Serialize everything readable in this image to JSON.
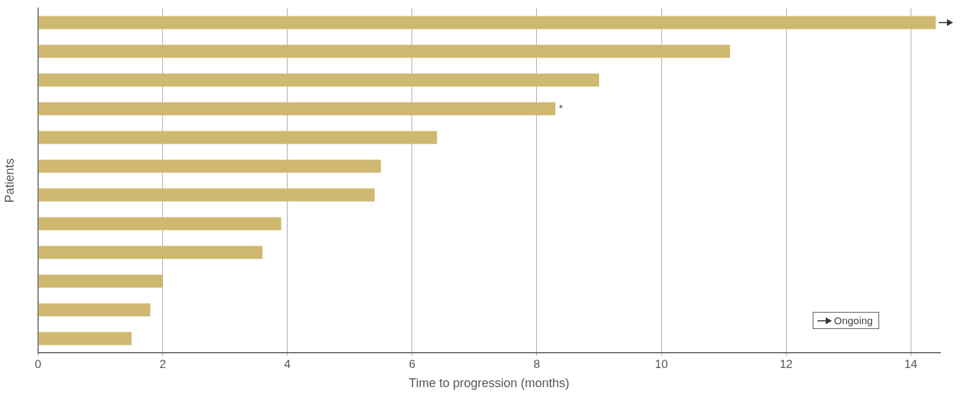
{
  "chart_data": {
    "type": "bar",
    "orientation": "horizontal",
    "xlabel": "Time to progression (months)",
    "ylabel": "Patients",
    "categories": [
      null,
      null,
      null,
      null,
      null,
      null,
      null,
      null,
      null,
      null,
      null,
      null
    ],
    "values": [
      14.4,
      11.1,
      9.0,
      8.3,
      6.4,
      5.5,
      5.4,
      3.9,
      3.6,
      2.0,
      1.8,
      1.5
    ],
    "color": "#cfb86f",
    "xlim": [
      0,
      14.47
    ],
    "xticks": [
      0,
      2,
      4,
      6,
      8,
      10,
      12,
      14
    ],
    "grid": "x",
    "tick_labels": "x",
    "annotations": [
      {
        "text": "*",
        "x": 8.3
      },
      "Ongoing"
    ]
  }
}
